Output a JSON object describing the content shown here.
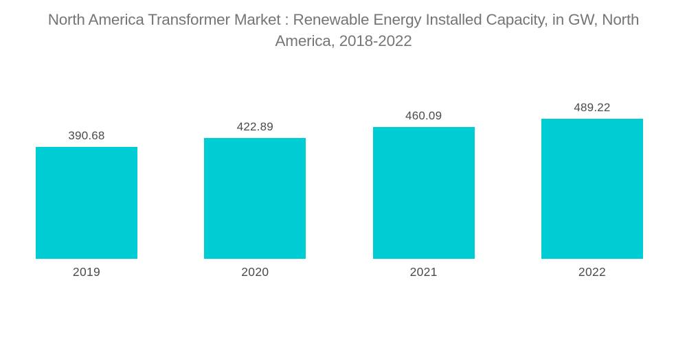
{
  "title": {
    "text": "North America Transformer Market : Renewable Energy Installed Capacity, in GW, North America, 2018-2022"
  },
  "chart_data": {
    "type": "bar",
    "title": "North America Transformer Market : Renewable Energy Installed Capacity, in GW, North America, 2018-2022",
    "categories": [
      "2019",
      "2020",
      "2021",
      "2022"
    ],
    "values": [
      390.68,
      422.89,
      460.09,
      489.22
    ],
    "value_labels": [
      "390.68",
      "422.89",
      "460.09",
      "489.22"
    ],
    "xlabel": "",
    "ylabel": "",
    "unit": "GW",
    "ylim": [
      0,
      489.22
    ],
    "grid": false,
    "legend": false,
    "bar_color": "#00cdd3",
    "label_color": "#4a4a4a",
    "title_color": "#757575",
    "background_color": "#ffffff"
  }
}
